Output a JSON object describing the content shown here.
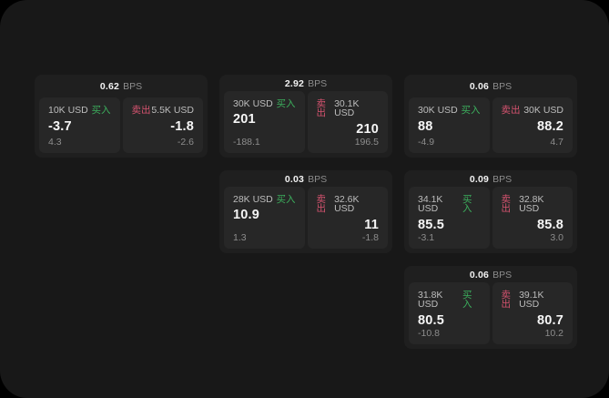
{
  "window": {
    "outer_background": "#000000",
    "screen_background": "#181818"
  },
  "labels": {
    "bps_unit": "BPS",
    "buy": "买入",
    "sell": "卖出"
  },
  "colors": {
    "buy_green": "#3caf5d",
    "sell_red": "#d5536f",
    "card_bg": "#1f1f1f",
    "tile_bg": "#272727",
    "price_white": "#f6f6f6",
    "muted_gray": "#8d8d8d",
    "notional_gray": "#bdbdbd"
  },
  "cards": [
    {
      "bps_value": "0.62",
      "buy": {
        "notional": "10K USD",
        "price": "-3.7",
        "delta": "4.3"
      },
      "sell": {
        "notional": "5.5K USD",
        "price": "-1.8",
        "delta": "-2.6"
      }
    },
    {
      "bps_value": "2.92",
      "buy": {
        "notional": "30K USD",
        "price": "201",
        "delta": "-188.1"
      },
      "sell": {
        "notional": "30.1K USD",
        "price": "210",
        "delta": "196.5"
      }
    },
    {
      "bps_value": "0.06",
      "buy": {
        "notional": "30K USD",
        "price": "88",
        "delta": "-4.9"
      },
      "sell": {
        "notional": "30K USD",
        "price": "88.2",
        "delta": "4.7"
      }
    },
    {
      "bps_value": "0.03",
      "buy": {
        "notional": "28K USD",
        "price": "10.9",
        "delta": "1.3"
      },
      "sell": {
        "notional": "32.6K USD",
        "price": "11",
        "delta": "-1.8"
      }
    },
    {
      "bps_value": "0.09",
      "buy": {
        "notional": "34.1K USD",
        "price": "85.5",
        "delta": "-3.1"
      },
      "sell": {
        "notional": "32.8K USD",
        "price": "85.8",
        "delta": "3.0"
      }
    },
    {
      "bps_value": "0.06",
      "buy": {
        "notional": "31.8K USD",
        "price": "80.5",
        "delta": "-10.8"
      },
      "sell": {
        "notional": "39.1K USD",
        "price": "80.7",
        "delta": "10.2"
      }
    }
  ]
}
